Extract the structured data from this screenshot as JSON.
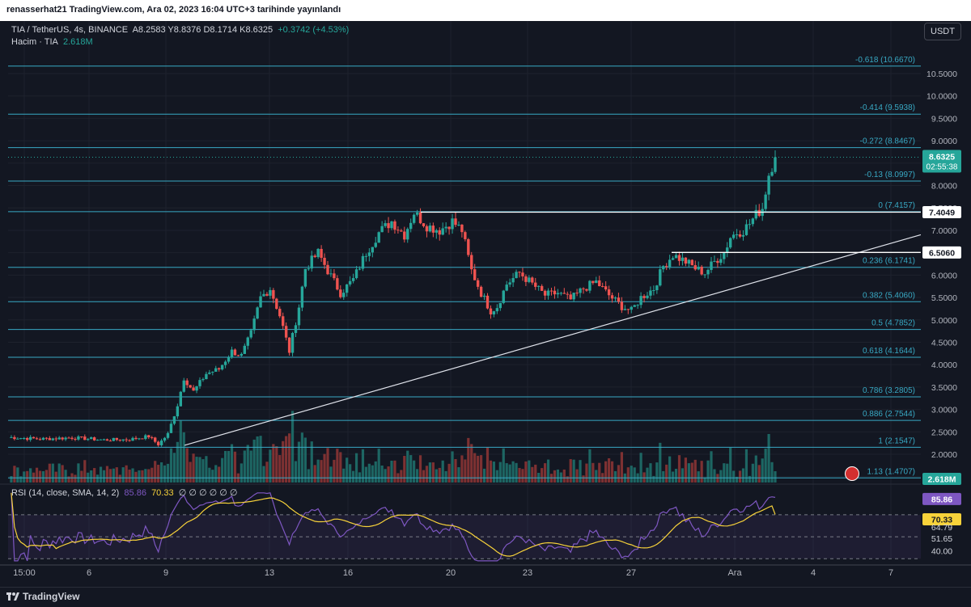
{
  "header": {
    "publisher": "renasserhat21 TradingView.com, Ara 02, 2023 16:04 UTC+3 tarihinde yayınlandı"
  },
  "legend": {
    "pair": "TIA / TetherUS, 4s, BINANCE",
    "ohlc": "A8.2583  Y8.8376  D8.1714  K8.6325",
    "change": "+0.3742 (+4.53%)",
    "volume_label": "Hacim · TIA",
    "volume_value": "2.618M",
    "rsi_label": "RSI (14, close, SMA, 14, 2)",
    "rsi_value": "85.86",
    "rsi_ma": "70.33",
    "rsi_rest": "∅ ∅ ∅ ∅ ∅ ∅"
  },
  "currency": "USDT",
  "footer": {
    "brand": "TradingView"
  },
  "colors": {
    "bg": "#131722",
    "up": "#26a69a",
    "down": "#ef5350",
    "fib": "#38a9c4",
    "rsi": "#7e57c2",
    "rsi_ma": "#f7d23a",
    "grid": "#1e222d"
  },
  "chart_data": {
    "type": "candlestick",
    "symbol": "TIA/USDT",
    "timeframe": "4s",
    "ylim": [
      1.35,
      11.15
    ],
    "y_ticks": [
      "10.5000",
      "10.0000",
      "9.5000",
      "9.0000",
      "8.5000",
      "8.0000",
      "7.5000",
      "7.0000",
      "6.5000",
      "6.0000",
      "5.5000",
      "5.0000",
      "4.5000",
      "4.0000",
      "3.5000",
      "3.0000",
      "2.5000",
      "2.0000",
      "1.5000"
    ],
    "x_ticks": [
      "15:00",
      "6",
      "9",
      "13",
      "16",
      "20",
      "23",
      "27",
      "Ara",
      "4",
      "7"
    ],
    "fib_levels": [
      {
        "label": "-0.618 (10.6670)",
        "price": 10.667
      },
      {
        "label": "-0.414 (9.5938)",
        "price": 9.5938
      },
      {
        "label": "-0.272 (8.8467)",
        "price": 8.8467
      },
      {
        "label": "-0.13 (8.0997)",
        "price": 8.0997
      },
      {
        "label": "0 (7.4157)",
        "price": 7.4157
      },
      {
        "label": "0.236 (6.1741)",
        "price": 6.1741
      },
      {
        "label": "0.382 (5.4060)",
        "price": 5.406
      },
      {
        "label": "0.5 (4.7852)",
        "price": 4.7852
      },
      {
        "label": "0.618 (4.1644)",
        "price": 4.1644
      },
      {
        "label": "0.786 (3.2805)",
        "price": 3.2805
      },
      {
        "label": "0.886 (2.7544)",
        "price": 2.7544
      },
      {
        "label": "1 (2.1547)",
        "price": 2.1547
      },
      {
        "label": "1.13 (1.4707)",
        "price": 1.4707
      }
    ],
    "horizontal_lines": [
      {
        "price": 7.4049,
        "label": "7.4049"
      },
      {
        "price": 6.506,
        "label": "6.5060"
      }
    ],
    "trendline": {
      "from_price": 2.2,
      "to_price": 6.9
    },
    "last_price": {
      "label": "8.6325",
      "price": 8.6325,
      "countdown": "02:55:38"
    },
    "volume_last": "2.618M",
    "rsi_axis": [
      "85.86",
      "70.33",
      "64.79",
      "51.65",
      "40.00"
    ],
    "rsi_last": 85.86,
    "rsi_ma_last": 70.33,
    "keypoints": [
      [
        0,
        2.38
      ],
      [
        10,
        2.34
      ],
      [
        20,
        2.37
      ],
      [
        30,
        2.32
      ],
      [
        38,
        2.33
      ],
      [
        44,
        2.4
      ],
      [
        47,
        2.22
      ],
      [
        50,
        2.45
      ],
      [
        53,
        3.1
      ],
      [
        55,
        3.7
      ],
      [
        58,
        3.4
      ],
      [
        62,
        3.8
      ],
      [
        66,
        3.9
      ],
      [
        70,
        4.3
      ],
      [
        73,
        4.2
      ],
      [
        76,
        4.7
      ],
      [
        79,
        5.5
      ],
      [
        82,
        5.7
      ],
      [
        85,
        5.1
      ],
      [
        88,
        4.3
      ],
      [
        91,
        5.3
      ],
      [
        93,
        6.15
      ],
      [
        97,
        6.5
      ],
      [
        100,
        6.1
      ],
      [
        104,
        5.6
      ],
      [
        108,
        5.9
      ],
      [
        112,
        6.5
      ],
      [
        116,
        6.95
      ],
      [
        120,
        7.2
      ],
      [
        124,
        6.9
      ],
      [
        127,
        7.4
      ],
      [
        131,
        7.1
      ],
      [
        135,
        7.0
      ],
      [
        139,
        7.2
      ],
      [
        142,
        7.0
      ],
      [
        145,
        6.1
      ],
      [
        148,
        5.6
      ],
      [
        151,
        5.2
      ],
      [
        153,
        5.3
      ],
      [
        156,
        5.8
      ],
      [
        160,
        6.05
      ],
      [
        164,
        5.8
      ],
      [
        168,
        5.55
      ],
      [
        172,
        5.6
      ],
      [
        176,
        5.45
      ],
      [
        180,
        5.7
      ],
      [
        184,
        5.85
      ],
      [
        188,
        5.55
      ],
      [
        192,
        5.3
      ],
      [
        195,
        5.2
      ],
      [
        198,
        5.5
      ],
      [
        202,
        5.7
      ],
      [
        205,
        6.2
      ],
      [
        208,
        6.45
      ],
      [
        212,
        6.3
      ],
      [
        215,
        6.15
      ],
      [
        218,
        6.05
      ],
      [
        221,
        6.3
      ],
      [
        224,
        6.5
      ],
      [
        226,
        6.85
      ],
      [
        228,
        6.95
      ],
      [
        230,
        7.0
      ],
      [
        232,
        7.15
      ],
      [
        234,
        7.35
      ],
      [
        236,
        7.5
      ],
      [
        238,
        8.25
      ],
      [
        240,
        8.6325
      ]
    ]
  }
}
